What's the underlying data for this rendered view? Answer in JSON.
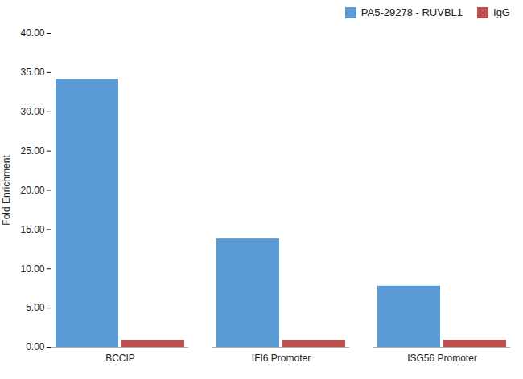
{
  "chart_data": {
    "type": "bar",
    "categories": [
      "BCCIP",
      "IFI6 Promoter",
      "ISG56 Promoter"
    ],
    "series": [
      {
        "name": "PA5-29278 - RUVBL1",
        "color": "#5B9BD5",
        "values": [
          34.1,
          13.8,
          7.8
        ]
      },
      {
        "name": "IgG",
        "color": "#C0504D",
        "values": [
          0.85,
          0.85,
          0.9
        ]
      }
    ],
    "ylabel": "Fold Enrichment",
    "ylim": [
      0,
      40.0
    ],
    "yticks": [
      {
        "value": 0,
        "label": "0.00"
      },
      {
        "value": 5,
        "label": "5.00"
      },
      {
        "value": 10,
        "label": "10.00"
      },
      {
        "value": 15,
        "label": "15.00"
      },
      {
        "value": 20,
        "label": "20.00"
      },
      {
        "value": 25,
        "label": "25.00"
      },
      {
        "value": 30,
        "label": "30.00"
      },
      {
        "value": 35,
        "label": "35.00"
      },
      {
        "value": 40,
        "label": "40.00"
      }
    ],
    "grid": false,
    "legend": "upper right"
  }
}
